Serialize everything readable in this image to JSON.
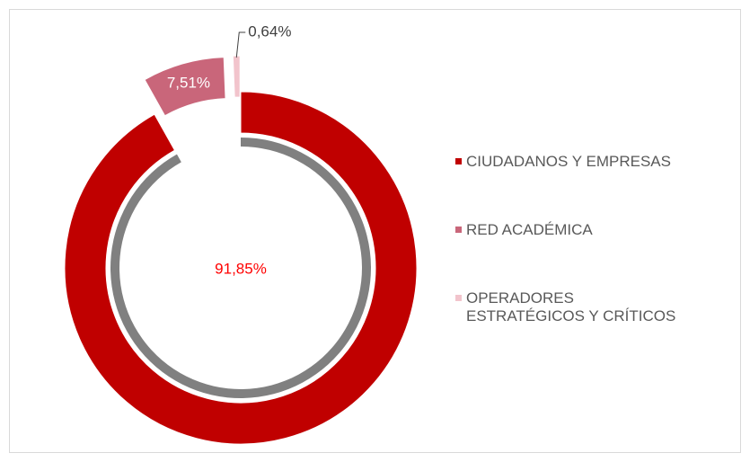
{
  "chart_data": {
    "type": "donut",
    "categories": [
      "CIUDADANOS Y EMPRESAS",
      "RED ACADÉMICA",
      "OPERADORES ESTRATÉGICOS Y CRÍTICOS"
    ],
    "values": [
      91.85,
      7.51,
      0.64
    ],
    "value_labels": [
      "91,85%",
      "7,51%",
      "0,64%"
    ],
    "colors": [
      "#c00000",
      "#c9667a",
      "#f2c4cc"
    ],
    "legend": "right"
  }
}
